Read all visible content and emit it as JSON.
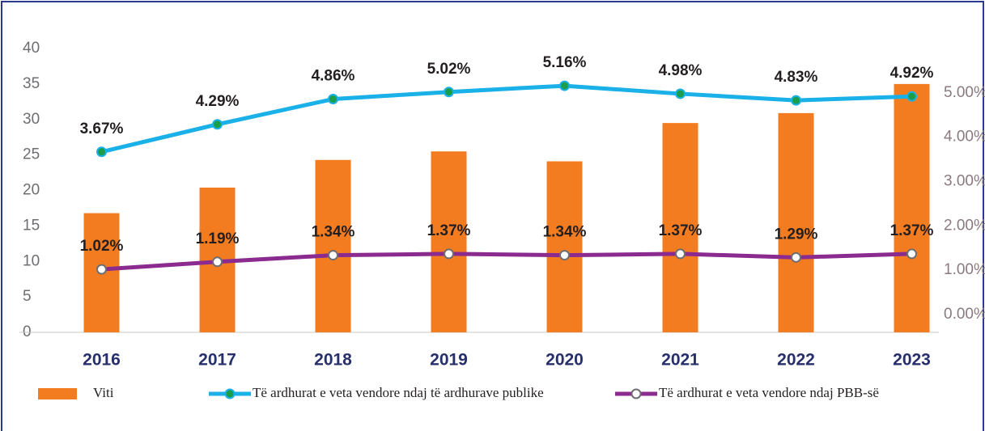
{
  "chart_data": {
    "type": "bar-line",
    "categories": [
      "2016",
      "2017",
      "2018",
      "2019",
      "2020",
      "2021",
      "2022",
      "2023"
    ],
    "series": [
      {
        "name": "Viti",
        "type": "bar",
        "color": "#f47c20",
        "values": [
          16.8,
          20.4,
          24.3,
          25.5,
          24.1,
          29.5,
          30.9,
          35.0
        ]
      },
      {
        "name": "Të ardhurat e veta vendore ndaj të ardhurave publike",
        "type": "line",
        "axis": "y2",
        "color": "#1ab0e8",
        "marker_color": "#1a9e4a",
        "values": [
          3.67,
          4.29,
          4.86,
          5.02,
          5.16,
          4.98,
          4.83,
          4.92
        ],
        "value_labels": [
          "3.67%",
          "4.29%",
          "4.86%",
          "5.02%",
          "5.16%",
          "4.98%",
          "4.83%",
          "4.92%"
        ]
      },
      {
        "name": "Të ardhurat e veta vendore ndaj PBB-së",
        "type": "line",
        "axis": "y2",
        "color": "#8b2a8f",
        "marker_color": "#ffffff",
        "values": [
          1.02,
          1.19,
          1.34,
          1.37,
          1.34,
          1.37,
          1.29,
          1.37
        ],
        "value_labels": [
          "1.02%",
          "1.19%",
          "1.34%",
          "1.37%",
          "1.34%",
          "1.37%",
          "1.29%",
          "1.37%"
        ]
      }
    ],
    "ylim": [
      0,
      40
    ],
    "yticks": [
      0,
      5,
      10,
      15,
      20,
      25,
      30,
      35,
      40
    ],
    "y2lim": [
      -0.4,
      6.0
    ],
    "y2ticks": [
      {
        "value": 0,
        "label": "0.00%"
      },
      {
        "value": 1,
        "label": "1.00%"
      },
      {
        "value": 2,
        "label": "2.00%"
      },
      {
        "value": 3,
        "label": "3.00%"
      },
      {
        "value": 4,
        "label": "4.00%"
      },
      {
        "value": 5,
        "label": "5.00%"
      }
    ],
    "legend": "bottom"
  }
}
